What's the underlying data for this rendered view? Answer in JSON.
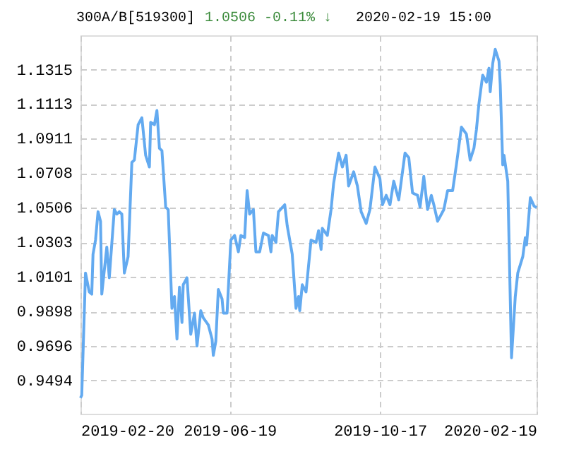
{
  "chart_data": {
    "type": "line",
    "title": "300A/B[519300]",
    "annotations": [
      "1.0506",
      "-0.11% ↓",
      "2020-02-19 15:00"
    ],
    "x": [
      "2019-02-20",
      "2019-02-21",
      "2019-02-24",
      "2019-02-27",
      "2019-03-01",
      "2019-03-02",
      "2019-03-04",
      "2019-03-06",
      "2019-03-08",
      "2019-03-09",
      "2019-03-13",
      "2019-03-15",
      "2019-03-19",
      "2019-03-21",
      "2019-03-23",
      "2019-03-25",
      "2019-03-27",
      "2019-03-30",
      "2019-04-02",
      "2019-04-04",
      "2019-04-07",
      "2019-04-10",
      "2019-04-13",
      "2019-04-16",
      "2019-04-17",
      "2019-04-20",
      "2019-04-22",
      "2019-04-24",
      "2019-04-26",
      "2019-04-29",
      "2019-05-01",
      "2019-05-04",
      "2019-05-06",
      "2019-05-08",
      "2019-05-10",
      "2019-05-12",
      "2019-05-13",
      "2019-05-16",
      "2019-05-19",
      "2019-05-22",
      "2019-05-24",
      "2019-05-27",
      "2019-05-29",
      "2019-06-02",
      "2019-06-05",
      "2019-06-06",
      "2019-06-08",
      "2019-06-10",
      "2019-06-13",
      "2019-06-14",
      "2019-06-17",
      "2019-06-20",
      "2019-06-23",
      "2019-06-26",
      "2019-06-28",
      "2019-07-01",
      "2019-07-03",
      "2019-07-05",
      "2019-07-08",
      "2019-07-10",
      "2019-07-13",
      "2019-07-16",
      "2019-07-20",
      "2019-07-22",
      "2019-07-23",
      "2019-07-26",
      "2019-07-28",
      "2019-08-02",
      "2019-08-04",
      "2019-08-08",
      "2019-08-11",
      "2019-08-13",
      "2019-08-14",
      "2019-08-16",
      "2019-08-19",
      "2019-08-23",
      "2019-08-27",
      "2019-08-29",
      "2019-08-31",
      "2019-09-01",
      "2019-09-05",
      "2019-09-08",
      "2019-09-10",
      "2019-09-14",
      "2019-09-17",
      "2019-09-20",
      "2019-09-22",
      "2019-09-26",
      "2019-09-29",
      "2019-10-02",
      "2019-10-06",
      "2019-10-09",
      "2019-10-13",
      "2019-10-17",
      "2019-10-19",
      "2019-10-22",
      "2019-10-25",
      "2019-10-28",
      "2019-11-01",
      "2019-11-06",
      "2019-11-09",
      "2019-11-12",
      "2019-11-16",
      "2019-11-18",
      "2019-11-21",
      "2019-11-24",
      "2019-11-27",
      "2019-11-29",
      "2019-12-02",
      "2019-12-07",
      "2019-12-10",
      "2019-12-14",
      "2019-12-17",
      "2019-12-21",
      "2019-12-25",
      "2019-12-28",
      "2019-12-31",
      "2020-01-02",
      "2020-01-04",
      "2020-01-07",
      "2020-01-10",
      "2020-01-12",
      "2020-01-13",
      "2020-01-15",
      "2020-01-17",
      "2020-01-20",
      "2020-01-21",
      "2020-01-23",
      "2020-01-24",
      "2020-01-27",
      "2020-01-30",
      "2020-02-02",
      "2020-02-04",
      "2020-02-08",
      "2020-02-10",
      "2020-02-11",
      "2020-02-14",
      "2020-02-17",
      "2020-02-19"
    ],
    "series": [
      {
        "color": "#63aaf0",
        "values": [
          0.9391,
          0.9406,
          1.0123,
          1.0012,
          0.9999,
          1.0233,
          1.0316,
          1.0482,
          1.0426,
          0.9999,
          1.0275,
          1.0095,
          1.0495,
          1.0468,
          1.0482,
          1.0468,
          1.0123,
          1.0219,
          1.0771,
          1.0785,
          1.0992,
          1.1033,
          1.0813,
          1.0744,
          1.1006,
          1.0992,
          1.1075,
          1.0854,
          1.084,
          1.0509,
          1.0495,
          0.9916,
          0.9985,
          0.9736,
          1.004,
          0.9833,
          1.0054,
          1.0095,
          0.9764,
          0.9888,
          0.9695,
          0.9902,
          0.986,
          0.9819,
          0.9736,
          0.964,
          0.9723,
          1.0026,
          0.997,
          0.9888,
          0.9888,
          1.0316,
          1.0343,
          1.0247,
          1.0343,
          1.033,
          1.0606,
          1.0468,
          1.0495,
          1.0247,
          1.0247,
          1.0357,
          1.0343,
          1.0247,
          1.0343,
          1.0302,
          1.0482,
          1.0523,
          1.0399,
          1.0233,
          0.9916,
          0.9985,
          0.9902,
          1.0054,
          1.0012,
          1.0316,
          1.0302,
          1.0371,
          1.0261,
          1.0385,
          1.0343,
          1.0495,
          1.0647,
          1.0826,
          1.0744,
          1.0813,
          1.0633,
          1.0716,
          1.0633,
          1.0482,
          1.0413,
          1.0495,
          1.0744,
          1.0675,
          1.0523,
          1.0578,
          1.0523,
          1.0661,
          1.0551,
          1.0826,
          1.0799,
          1.0592,
          1.0578,
          1.0509,
          1.0689,
          1.0495,
          1.0578,
          1.0523,
          1.0426,
          1.0495,
          1.0606,
          1.0606,
          1.0757,
          1.0978,
          1.0937,
          1.0785,
          1.0854,
          1.0964,
          1.1116,
          1.1282,
          1.1241,
          1.1323,
          1.1185,
          1.1351,
          1.1434,
          1.1365,
          1.1227,
          1.0757,
          1.0813,
          1.0661,
          0.9626,
          0.9985,
          1.0123,
          1.0219,
          1.033,
          1.0288,
          1.0564,
          1.0515,
          1.0506
        ]
      }
    ],
    "xlim": [
      "2019-02-20",
      "2020-02-19"
    ],
    "ylim": [
      0.9298,
      1.1516
    ],
    "xticks": [
      "2019-02-20",
      "2019-06-19",
      "2019-10-17",
      "2020-02-19"
    ],
    "yticks": [
      0.9494,
      0.9696,
      0.9898,
      1.0101,
      1.0303,
      1.0506,
      1.0708,
      1.0911,
      1.1113,
      1.1315
    ],
    "grid": true
  }
}
